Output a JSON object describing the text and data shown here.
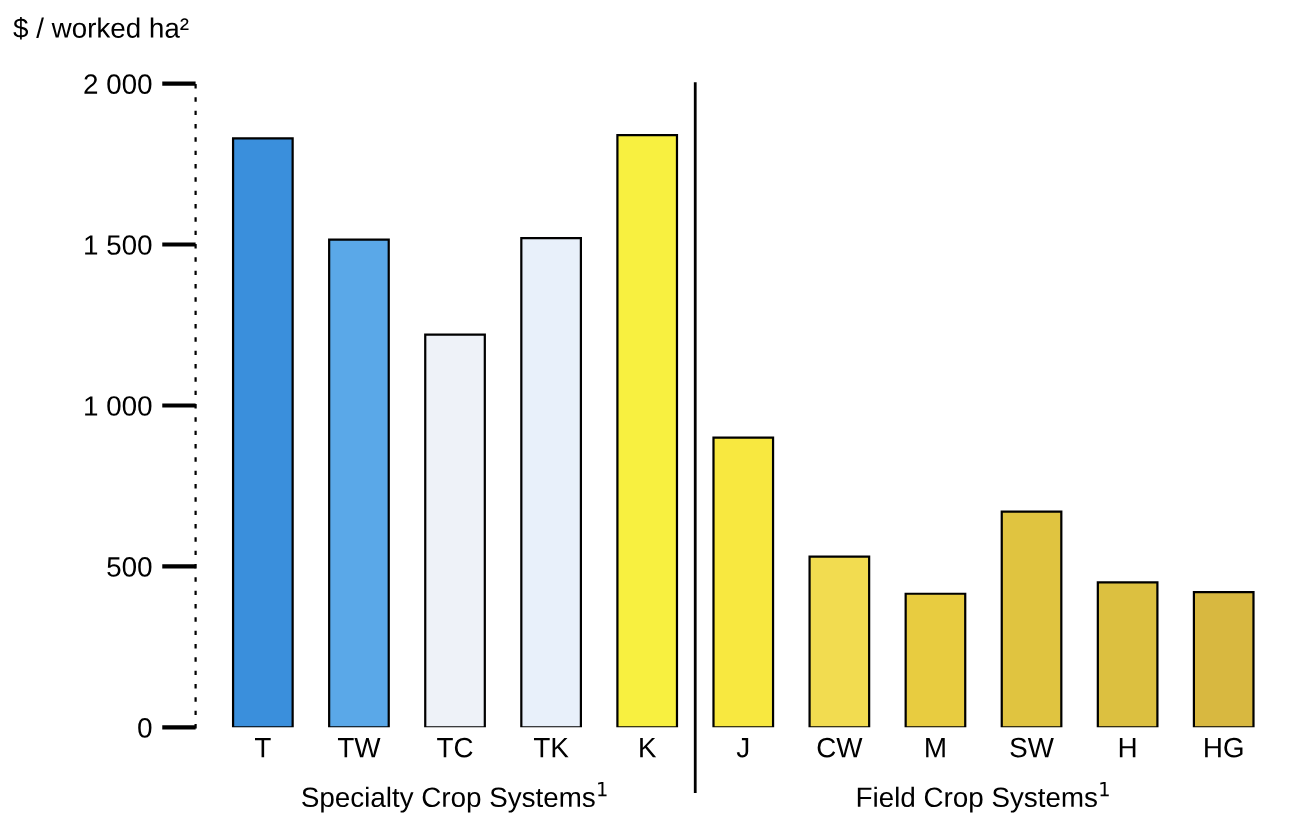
{
  "chart_data": {
    "type": "bar",
    "ylabel": "$ / worked ha²",
    "categories": [
      "T",
      "TW",
      "TC",
      "TK",
      "K",
      "J",
      "CW",
      "M",
      "SW",
      "H",
      "HG"
    ],
    "values": [
      1830,
      1515,
      1220,
      1520,
      1840,
      900,
      530,
      415,
      670,
      450,
      420
    ],
    "colors": [
      "#3a8fdc",
      "#5aa8e8",
      "#eef2f8",
      "#e8f0fa",
      "#f8f040",
      "#f8e840",
      "#f2dc50",
      "#e8cc40",
      "#e0c440",
      "#dcc040",
      "#d8b840"
    ],
    "ylim": [
      0,
      2000
    ],
    "yticks": [
      0,
      500,
      {
        "value": 1000,
        "label": "1 000"
      },
      {
        "value": 1500,
        "label": "1 500"
      },
      {
        "value": 2000,
        "label": "2 000"
      }
    ],
    "annotations": [
      "Specialty Crop Systems$^{1}$",
      "Field Crop Systems$^{1}$"
    ],
    "grid": false,
    "legend": false
  }
}
